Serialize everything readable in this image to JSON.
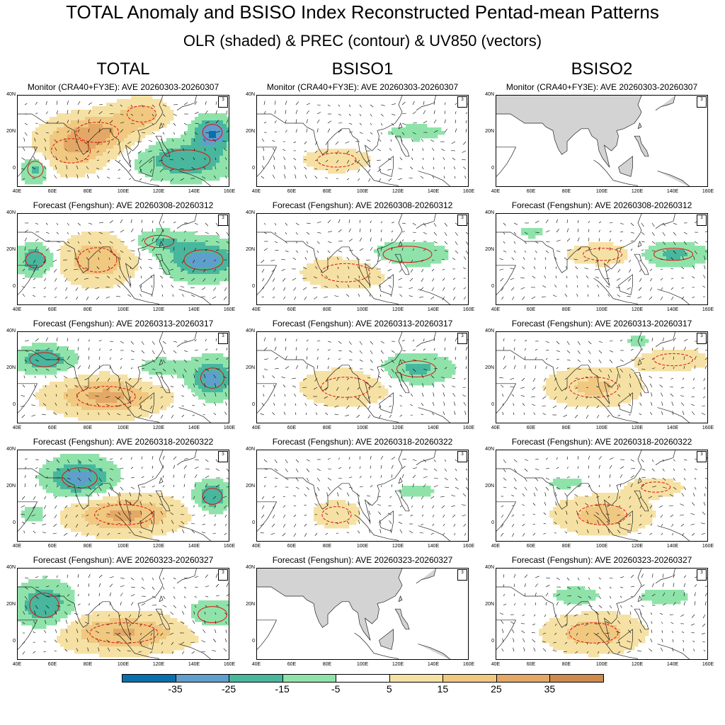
{
  "header": {
    "title": "TOTAL Anomaly and BSISO Index Reconstructed Pentad-mean Patterns",
    "subtitle": "OLR (shaded) & PREC (contour) & UV850 (vectors)"
  },
  "columns": [
    "TOTAL",
    "BSISO1",
    "BSISO2"
  ],
  "row_titles": [
    "Monitor (CRA40+FY3E): AVE 20260303-20260307",
    "Forecast (Fengshun): AVE 20260308-20260312",
    "Forecast (Fengshun): AVE 20260313-20260317",
    "Forecast (Fengshun): AVE 20260318-20260322",
    "Forecast (Fengshun): AVE 20260323-20260327"
  ],
  "axes": {
    "y_ticks": [
      "40N",
      "20N",
      "0"
    ],
    "x_ticks": [
      "40E",
      "60E",
      "80E",
      "100E",
      "120E",
      "140E",
      "160E"
    ],
    "ref_vector": "3"
  },
  "colorbar": {
    "labels": [
      "-35",
      "-25",
      "-15",
      "-5",
      "5",
      "15",
      "25",
      "35"
    ],
    "colors": [
      "#0b6fae",
      "#5f9fcc",
      "#48b79d",
      "#8fe3aa",
      "#ffffff",
      "#f6e1a4",
      "#f0c880",
      "#e4a866",
      "#cf8a4e"
    ]
  },
  "chart_data": {
    "type": "heatmap",
    "title": "TOTAL Anomaly and BSISO Index Reconstructed Pentad-mean Patterns",
    "subtitle": "OLR (shaded) & PREC (contour) & UV850 (vectors)",
    "domain": {
      "lon": [
        40,
        160
      ],
      "lat": [
        -10,
        40
      ]
    },
    "shading_levels": [
      -35,
      -25,
      -15,
      -5,
      5,
      15,
      25,
      35
    ],
    "panels": [
      {
        "column": "TOTAL",
        "period": "20260303-20260307",
        "source": "Monitor (CRA40+FY3E)",
        "blobs": [
          [
            85,
            20,
            22,
            10,
            25
          ],
          [
            70,
            10,
            20,
            12,
            20
          ],
          [
            135,
            5,
            25,
            10,
            -25
          ],
          [
            150,
            20,
            10,
            8,
            -35
          ],
          [
            50,
            0,
            8,
            8,
            -20
          ],
          [
            110,
            30,
            15,
            8,
            20
          ]
        ]
      },
      {
        "column": "BSISO1",
        "period": "20260303-20260307",
        "source": "Monitor (CRA40+FY3E)",
        "blobs": [
          [
            85,
            5,
            20,
            7,
            12
          ],
          [
            130,
            20,
            22,
            6,
            -8
          ]
        ]
      },
      {
        "column": "BSISO2",
        "period": "20260303-20260307",
        "source": "Monitor (CRA40+FY3E)",
        "blobs": []
      },
      {
        "column": "TOTAL",
        "period": "20260308-20260312",
        "source": "Forecast (Fengshun)",
        "blobs": [
          [
            85,
            15,
            20,
            12,
            25
          ],
          [
            145,
            15,
            20,
            10,
            -30
          ],
          [
            50,
            15,
            10,
            8,
            -25
          ],
          [
            120,
            25,
            15,
            6,
            -15
          ]
        ]
      },
      {
        "column": "BSISO1",
        "period": "20260308-20260312",
        "source": "Forecast (Fengshun)",
        "blobs": [
          [
            90,
            8,
            25,
            9,
            14
          ],
          [
            125,
            18,
            25,
            8,
            -12
          ]
        ]
      },
      {
        "column": "BSISO2",
        "period": "20260308-20260312",
        "source": "Forecast (Fengshun)",
        "blobs": [
          [
            100,
            18,
            20,
            6,
            14
          ],
          [
            140,
            18,
            20,
            6,
            -18
          ],
          [
            60,
            30,
            10,
            4,
            -8
          ]
        ]
      },
      {
        "column": "TOTAL",
        "period": "20260313-20260317",
        "source": "Forecast (Fengshun)",
        "blobs": [
          [
            90,
            5,
            30,
            10,
            28
          ],
          [
            55,
            25,
            15,
            7,
            -25
          ],
          [
            150,
            15,
            12,
            10,
            -30
          ],
          [
            120,
            20,
            15,
            7,
            -10
          ]
        ]
      },
      {
        "column": "BSISO1",
        "period": "20260313-20260317",
        "source": "Forecast (Fengshun)",
        "blobs": [
          [
            90,
            10,
            25,
            10,
            15
          ],
          [
            130,
            20,
            20,
            8,
            -18
          ]
        ]
      },
      {
        "column": "BSISO2",
        "period": "20260313-20260317",
        "source": "Forecast (Fengshun)",
        "blobs": [
          [
            95,
            10,
            25,
            10,
            18
          ],
          [
            140,
            25,
            20,
            6,
            14
          ],
          [
            120,
            35,
            10,
            4,
            -8
          ]
        ]
      },
      {
        "column": "TOTAL",
        "period": "20260318-20260322",
        "source": "Forecast (Fengshun)",
        "blobs": [
          [
            75,
            25,
            18,
            10,
            -30
          ],
          [
            100,
            5,
            30,
            10,
            28
          ],
          [
            150,
            15,
            10,
            8,
            -25
          ],
          [
            50,
            5,
            10,
            6,
            -10
          ]
        ]
      },
      {
        "column": "BSISO1",
        "period": "20260318-20260322",
        "source": "Forecast (Fengshun)",
        "blobs": [
          [
            85,
            5,
            15,
            8,
            12
          ],
          [
            130,
            18,
            15,
            5,
            -8
          ]
        ]
      },
      {
        "column": "BSISO2",
        "period": "20260318-20260322",
        "source": "Forecast (Fengshun)",
        "blobs": [
          [
            100,
            5,
            25,
            10,
            20
          ],
          [
            80,
            22,
            15,
            5,
            -8
          ],
          [
            130,
            20,
            15,
            5,
            14
          ]
        ]
      },
      {
        "column": "TOTAL",
        "period": "20260323-20260327",
        "source": "Forecast (Fengshun)",
        "blobs": [
          [
            55,
            20,
            15,
            12,
            -25
          ],
          [
            100,
            5,
            35,
            10,
            26
          ],
          [
            150,
            15,
            15,
            8,
            -15
          ]
        ]
      },
      {
        "column": "BSISO1",
        "period": "20260323-20260327",
        "source": "Forecast (Fengshun)",
        "blobs": []
      },
      {
        "column": "BSISO2",
        "period": "20260323-20260327",
        "source": "Forecast (Fengshun)",
        "blobs": [
          [
            95,
            5,
            25,
            10,
            22
          ],
          [
            85,
            25,
            15,
            6,
            -10
          ],
          [
            135,
            25,
            20,
            6,
            -8
          ]
        ]
      }
    ]
  }
}
